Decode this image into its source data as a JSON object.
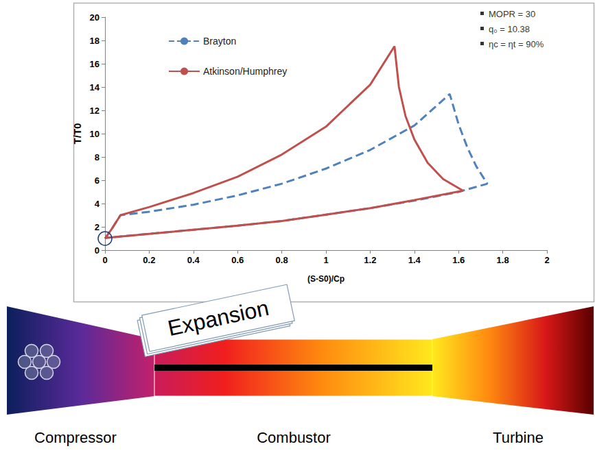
{
  "chart_data": {
    "type": "line",
    "xlabel": "(S-S0)/Cp",
    "ylabel": "T/T0",
    "xlim": [
      0,
      2
    ],
    "ylim": [
      0,
      20
    ],
    "xticks": [
      0,
      0.2,
      0.4,
      0.6,
      0.8,
      1,
      1.2,
      1.4,
      1.6,
      1.8,
      2
    ],
    "yticks": [
      0,
      2,
      4,
      6,
      8,
      10,
      12,
      14,
      16,
      18,
      20
    ],
    "grid": false,
    "legend": "upper left",
    "annotations": [
      "MOPR = 30",
      "q₀ = 10.38",
      "ηc = ηt = 90%"
    ],
    "series": [
      {
        "name": "Brayton",
        "color": "#4f81bd",
        "line_style": "dashed",
        "x": [
          0,
          0.03,
          0.07,
          0.2,
          0.4,
          0.6,
          0.8,
          1.0,
          1.2,
          1.4,
          1.56,
          1.6,
          1.64,
          1.68,
          1.73,
          1.6,
          1.4,
          1.2,
          1.0,
          0.8,
          0.6,
          0.4,
          0.2,
          0
        ],
        "values": [
          1,
          1.8,
          3,
          3.3,
          3.9,
          4.7,
          5.7,
          7.0,
          8.6,
          10.7,
          13.4,
          10.8,
          8.8,
          7.2,
          5.7,
          5.0,
          4.25,
          3.6,
          3.05,
          2.5,
          2.1,
          1.75,
          1.4,
          1.05
        ]
      },
      {
        "name": "Atkinson/Humphrey",
        "color": "#c0504d",
        "line_style": "solid",
        "x": [
          0,
          0.03,
          0.07,
          0.2,
          0.4,
          0.6,
          0.8,
          1.0,
          1.2,
          1.31,
          1.33,
          1.36,
          1.4,
          1.46,
          1.53,
          1.62,
          1.4,
          1.2,
          1.0,
          0.8,
          0.6,
          0.4,
          0.2,
          0
        ],
        "values": [
          1,
          1.8,
          3,
          3.7,
          4.9,
          6.3,
          8.2,
          10.6,
          14.2,
          17.5,
          14,
          11.5,
          9.5,
          7.5,
          6.1,
          5.1,
          4.3,
          3.6,
          3.05,
          2.5,
          2.1,
          1.75,
          1.4,
          1.05
        ]
      }
    ]
  },
  "diagram": {
    "components": [
      {
        "label": "Compressor"
      },
      {
        "label": "Combustor"
      },
      {
        "label": "Turbine"
      }
    ],
    "callout": "Expansion"
  }
}
